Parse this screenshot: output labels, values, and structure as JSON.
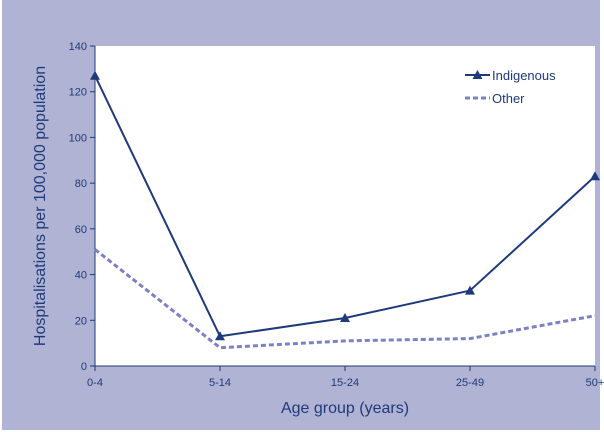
{
  "chart_data": {
    "type": "line",
    "categories": [
      "0-4",
      "5-14",
      "15-24",
      "25-49",
      "50+"
    ],
    "series": [
      {
        "name": "Indigenous",
        "values": [
          127,
          13,
          21,
          33,
          83
        ],
        "color": "#1f3a7a",
        "style": "solid",
        "marker": "triangle"
      },
      {
        "name": "Other",
        "values": [
          51,
          8,
          11,
          12,
          22
        ],
        "color": "#7c80c4",
        "style": "dashed",
        "marker": "none"
      }
    ],
    "title": "",
    "xlabel": "Age group (years)",
    "ylabel": "Hospitalisations per 100,000 population",
    "ylim": [
      0,
      140
    ],
    "yticks": [
      0,
      20,
      40,
      60,
      80,
      100,
      120,
      140
    ],
    "grid": false,
    "legend_position": "top-right",
    "background_color": "#b0b3d3",
    "plot_background_color": "#ffffff"
  }
}
